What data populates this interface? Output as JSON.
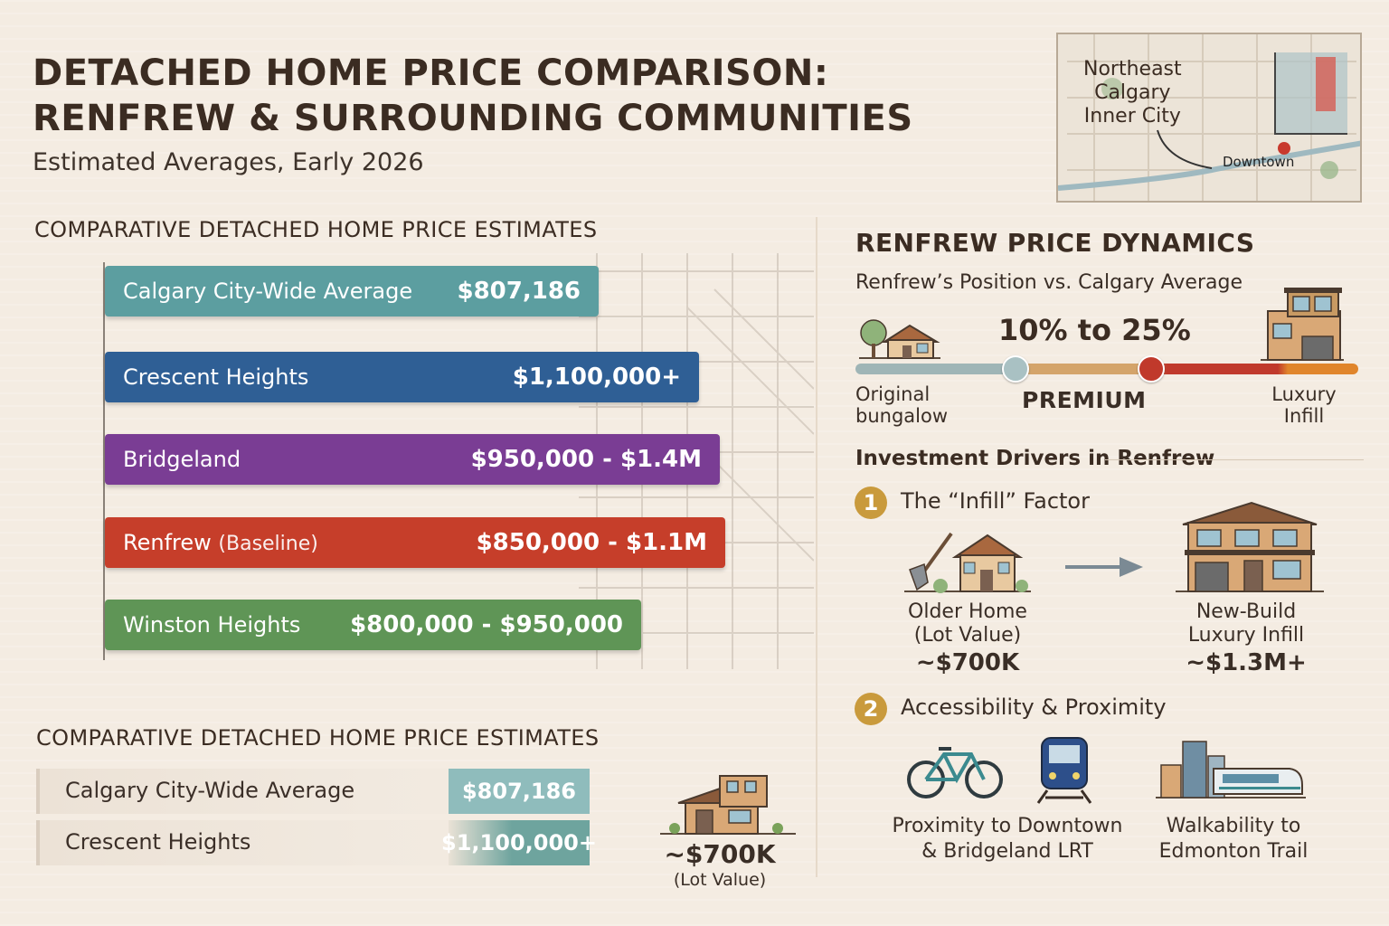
{
  "header": {
    "title_line1": "DETACHED HOME PRICE COMPARISON:",
    "title_line2": "RENFREW & SURROUNDING COMMUNITIES",
    "subtitle": "Estimated Averages, Early 2026"
  },
  "map": {
    "label_line1": "Northeast",
    "label_line2": "Calgary",
    "label_line3": "Inner City",
    "downtown": "Downtown"
  },
  "comparison": {
    "heading": "COMPARATIVE DETACHED HOME PRICE ESTIMATES",
    "bars": [
      {
        "label": "Calgary City-Wide Average",
        "sub": "",
        "value": "$807,186",
        "color": "#5c9ea0"
      },
      {
        "label": "Crescent Heights",
        "sub": "",
        "value": "$1,100,000+",
        "color": "#2f5f95"
      },
      {
        "label": "Bridgeland",
        "sub": "",
        "value": "$950,000 - $1.4M",
        "color": "#7a3d94"
      },
      {
        "label": "Renfrew",
        "sub": "(Baseline)",
        "value": "$850,000 - $1.1M",
        "color": "#c63e2a"
      },
      {
        "label": "Winston Heights",
        "sub": "",
        "value": "$800,000 - $950,000",
        "color": "#5f9556"
      }
    ]
  },
  "comparison2": {
    "heading": "COMPARATIVE DETACHED HOME PRICE ESTIMATES",
    "rows": [
      {
        "label": "Calgary City-Wide Average",
        "value": "$807,186",
        "color": "#8fbcbc"
      },
      {
        "label": "Crescent Heights",
        "value": "$1,100,000+",
        "color": "#6ea49e"
      }
    ],
    "house_value": "~$700K",
    "house_note": "(Lot Value)"
  },
  "dynamics": {
    "heading": "RENFREW PRICE DYNAMICS",
    "position_label": "Renfrew’s Position vs. Calgary Average",
    "range": "10% to 25%",
    "premium": "PREMIUM",
    "left_line1": "Original",
    "left_line2": "bungalow",
    "right_line1": "Luxury",
    "right_line2": "Infill"
  },
  "drivers": {
    "heading": "Investment Drivers in Renfrew",
    "d1_num": "1",
    "d1_title": "The “Infill” Factor",
    "older_line1": "Older Home",
    "older_line2": "(Lot Value)",
    "older_value": "~$700K",
    "new_line1": "New-Build",
    "new_line2": "Luxury Infill",
    "new_value": "~$1.3M+",
    "d2_num": "2",
    "d2_title": "Accessibility & Proximity",
    "prox_line1": "Proximity to Downtown",
    "prox_line2": "& Bridgeland LRT",
    "walk_line1": "Walkability to",
    "walk_line2": "Edmonton Trail"
  }
}
